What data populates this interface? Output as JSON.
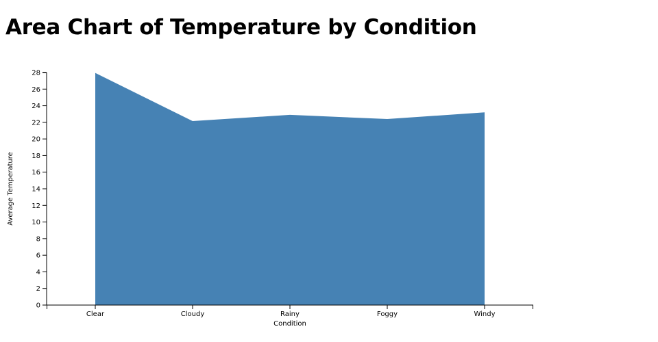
{
  "chart_data": {
    "type": "area",
    "title": "Area Chart of Temperature by Condition",
    "xlabel": "Condition",
    "ylabel": "Average Temperature",
    "categories": [
      "Clear",
      "Cloudy",
      "Rainy",
      "Foggy",
      "Windy"
    ],
    "values": [
      27.95,
      22.15,
      22.9,
      22.4,
      23.2
    ],
    "ylim": [
      0,
      28
    ],
    "yticks": [
      0,
      2,
      4,
      6,
      8,
      10,
      12,
      14,
      16,
      18,
      20,
      22,
      24,
      26,
      28
    ],
    "color": "#4682b4",
    "grid": false,
    "legend": "none"
  }
}
